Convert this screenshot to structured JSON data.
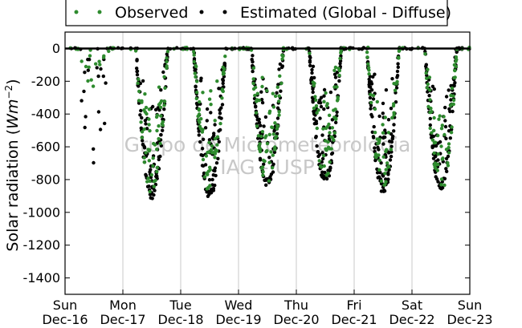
{
  "chart_data": {
    "type": "scatter",
    "title": "",
    "ylabel_text": "Solar radiation (",
    "ylabel_unit_base": "Wm",
    "ylabel_unit_exp": "−2",
    "ylabel_close": ")",
    "ylim": [
      -1500,
      100
    ],
    "yticks": [
      0,
      -200,
      -400,
      -600,
      -800,
      -1000,
      -1200,
      -1400
    ],
    "xlim": [
      "2012-12-16",
      "2012-12-23"
    ],
    "xticks": [
      {
        "weekday": "Sun",
        "date": "Dec-16"
      },
      {
        "weekday": "Mon",
        "date": "Dec-17"
      },
      {
        "weekday": "Tue",
        "date": "Dec-18"
      },
      {
        "weekday": "Wed",
        "date": "Dec-19"
      },
      {
        "weekday": "Thu",
        "date": "Dec-20"
      },
      {
        "weekday": "Fri",
        "date": "Dec-21"
      },
      {
        "weekday": "Sat",
        "date": "Dec-22"
      },
      {
        "weekday": "Sun",
        "date": "Dec-23"
      }
    ],
    "grid": "vertical",
    "legend_position": "top",
    "series": [
      {
        "name": "Observed",
        "color": "#2e8b2e",
        "marker": "circle"
      },
      {
        "name": "Estimated (Global - Diffuse)",
        "color": "#000000",
        "marker": "circle"
      }
    ],
    "daily_minima": [
      {
        "day": "Dec-16",
        "observed_min": -280,
        "estimated_min": -800
      },
      {
        "day": "Dec-17",
        "observed_min": -900,
        "estimated_min": -920
      },
      {
        "day": "Dec-18",
        "observed_min": -880,
        "estimated_min": -930
      },
      {
        "day": "Dec-19",
        "observed_min": -850,
        "estimated_min": -860
      },
      {
        "day": "Dec-20",
        "observed_min": -800,
        "estimated_min": -830
      },
      {
        "day": "Dec-21",
        "observed_min": -850,
        "estimated_min": -900
      },
      {
        "day": "Dec-22",
        "observed_min": -900,
        "estimated_min": -870
      }
    ],
    "watermark_lines": [
      "Grupo de Micrometeorologia",
      "IAG - USP"
    ]
  }
}
